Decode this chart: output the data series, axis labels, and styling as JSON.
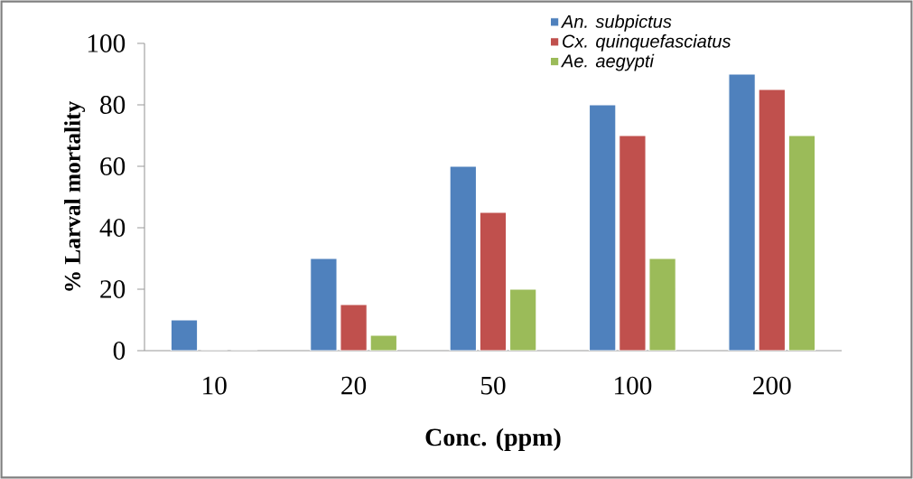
{
  "chart_data": {
    "type": "bar",
    "xlabel": "Conc. (ppm)",
    "ylabel": "% Larval mortality",
    "categories": [
      "10",
      "20",
      "50",
      "100",
      "200"
    ],
    "series": [
      {
        "name": "An. subpictus",
        "color": "#4f81bd",
        "values": [
          10,
          30,
          60,
          80,
          90
        ]
      },
      {
        "name": "Cx. quinquefasciatus",
        "color": "#c0504d",
        "values": [
          0,
          15,
          45,
          70,
          85
        ]
      },
      {
        "name": "Ae. aegypti",
        "color": "#9bbb59",
        "values": [
          0,
          5,
          20,
          30,
          70
        ]
      }
    ],
    "ylim": [
      0,
      100
    ],
    "yticks": [
      0,
      20,
      40,
      60,
      80,
      100
    ],
    "grid": false,
    "legend": "top right"
  }
}
